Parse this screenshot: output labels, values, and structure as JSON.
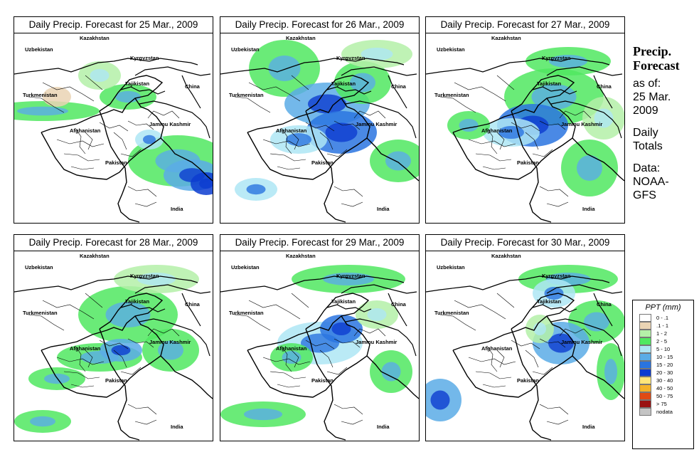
{
  "panels": [
    {
      "title": "Daily Precip. Forecast for  25 Mar., 2009",
      "date": "25 Mar."
    },
    {
      "title": "Daily Precip. Forecast for  26 Mar., 2009",
      "date": "26 Mar."
    },
    {
      "title": "Daily Precip. Forecast for  27 Mar., 2009",
      "date": "27 Mar."
    },
    {
      "title": "Daily Precip. Forecast for  28 Mar., 2009",
      "date": "28 Mar."
    },
    {
      "title": "Daily Precip. Forecast for  29 Mar., 2009",
      "date": "29 Mar."
    },
    {
      "title": "Daily Precip. Forecast for  30 Mar., 2009",
      "date": "30 Mar."
    }
  ],
  "map_labels": {
    "kazakhstan": "Kazakhstan",
    "uzbekistan": "Uzbekistan",
    "kyrgyzstan": "Kyrgyzstan",
    "tajikistan": "Tajikistan",
    "turkmenistan": "Turkmenistan",
    "china": "China",
    "afghanistan": "Afghanistan",
    "jammu_kashmir": "Jammu Kashmir",
    "pakistan": "Pakistan",
    "india": "India"
  },
  "sidebar": {
    "heading_line1": "Precip.",
    "heading_line2": "Forecast",
    "asof_line1": "as of:",
    "asof_line2": "25 Mar.",
    "asof_line3": "2009",
    "totals_line1": "Daily",
    "totals_line2": "Totals",
    "data_line1": "Data:",
    "data_line2": "NOAA-",
    "data_line3": "GFS"
  },
  "legend": {
    "title": "PPT (mm)",
    "entries": [
      {
        "label": "0 - .1",
        "color": "#ffffff"
      },
      {
        "label": ".1 - 1",
        "color": "#ead4b4"
      },
      {
        "label": "1 - 2",
        "color": "#b4f0a8"
      },
      {
        "label": "2 - 5",
        "color": "#50e860"
      },
      {
        "label": "5 - 10",
        "color": "#aee6f4"
      },
      {
        "label": "10 - 15",
        "color": "#5aace6"
      },
      {
        "label": "15 - 20",
        "color": "#2a74e0"
      },
      {
        "label": "20 - 30",
        "color": "#0c3cd0"
      },
      {
        "label": "30 - 40",
        "color": "#ffe57a"
      },
      {
        "label": "40 - 50",
        "color": "#f4b22a"
      },
      {
        "label": "50 - 75",
        "color": "#e04a14"
      },
      {
        "label": "> 75",
        "color": "#9a1212"
      },
      {
        "label": "nodata",
        "color": "#c4c4c4"
      }
    ]
  }
}
